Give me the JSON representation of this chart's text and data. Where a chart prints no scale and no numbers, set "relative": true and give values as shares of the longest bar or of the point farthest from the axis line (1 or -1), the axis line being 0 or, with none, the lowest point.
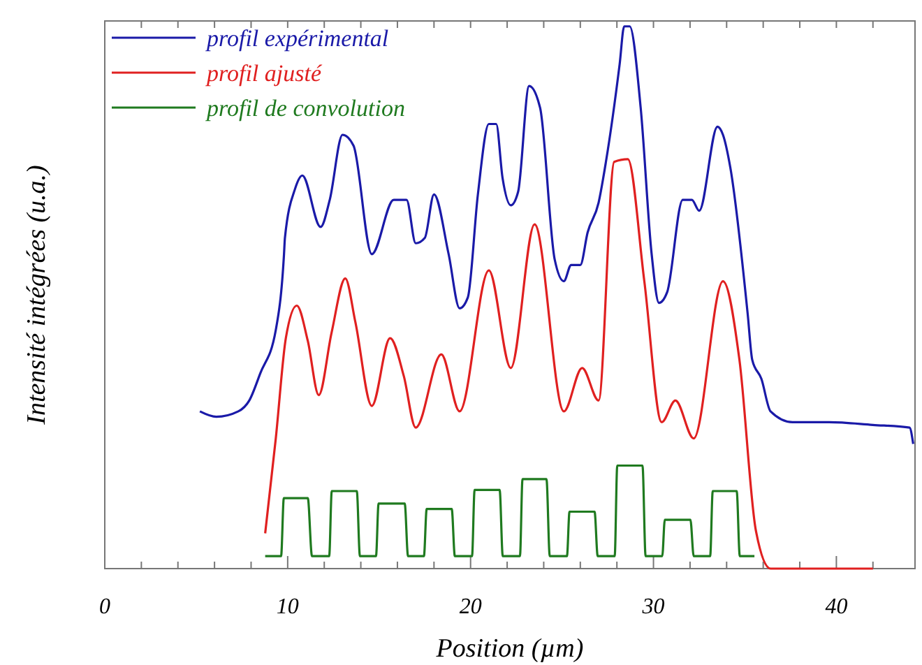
{
  "chart_data": {
    "type": "line",
    "relative": true,
    "xlabel": "Position (µm)",
    "ylabel": "Intensité intégrées (u.a.)",
    "xlim": [
      0,
      44.3
    ],
    "xticks": [
      0,
      {
        "value": 2,
        "label": null
      },
      {
        "value": 4,
        "label": null
      },
      {
        "value": 6,
        "label": null
      },
      {
        "value": 8,
        "label": null
      },
      10,
      {
        "value": 12,
        "label": null
      },
      {
        "value": 14,
        "label": null
      },
      {
        "value": 16,
        "label": null
      },
      {
        "value": 18,
        "label": null
      },
      20,
      {
        "value": 22,
        "label": null
      },
      {
        "value": 24,
        "label": null
      },
      {
        "value": 26,
        "label": null
      },
      {
        "value": 28,
        "label": null
      },
      30,
      {
        "value": 32,
        "label": null
      },
      {
        "value": 34,
        "label": null
      },
      {
        "value": 36,
        "label": null
      },
      {
        "value": 38,
        "label": null
      },
      40,
      {
        "value": 42,
        "label": null
      }
    ],
    "legend": "top left",
    "grid": false,
    "series": [
      {
        "name": "profil expérimental",
        "color": "#1a1aa8",
        "x": [
          5.2,
          6.1,
          7.3,
          7.9,
          8.5,
          9.35,
          9.8,
          9.85,
          10.4,
          10.8,
          11.8,
          12.3,
          13.0,
          13.6,
          14.6,
          15.8,
          16.5,
          17.0,
          17.5,
          18.0,
          18.8,
          19.4,
          19.85,
          20.4,
          21.0,
          21.4,
          21.75,
          22.2,
          22.6,
          23.2,
          23.8,
          24.6,
          25.1,
          25.5,
          26.0,
          26.4,
          27.0,
          27.4,
          28.15,
          28.4,
          28.7,
          29.3,
          29.9,
          30.3,
          30.75,
          31.6,
          32.1,
          32.5,
          33.5,
          33.8,
          34.2,
          35.15,
          35.4,
          35.9,
          36.4,
          37.6,
          39.6,
          42.0,
          44.0,
          44.2
        ],
        "values": [
          0.29,
          0.28,
          0.29,
          0.31,
          0.36,
          0.44,
          0.58,
          0.61,
          0.7,
          0.725,
          0.63,
          0.68,
          0.8,
          0.78,
          0.58,
          0.68,
          0.68,
          0.6,
          0.61,
          0.69,
          0.58,
          0.48,
          0.5,
          0.69,
          0.82,
          0.82,
          0.72,
          0.67,
          0.695,
          0.89,
          0.85,
          0.57,
          0.53,
          0.56,
          0.56,
          0.62,
          0.675,
          0.75,
          0.93,
          1.0,
          1.0,
          0.85,
          0.58,
          0.49,
          0.51,
          0.68,
          0.68,
          0.66,
          0.815,
          0.8,
          0.74,
          0.47,
          0.385,
          0.35,
          0.29,
          0.27,
          0.27,
          0.265,
          0.26,
          0.23
        ]
      },
      {
        "name": "profil ajusté",
        "color": "#e02020",
        "x": [
          8.77,
          9.35,
          9.9,
          10.5,
          11.1,
          11.7,
          12.4,
          13.15,
          13.7,
          14.6,
          15.6,
          16.35,
          17.0,
          18.4,
          19.4,
          21.0,
          22.2,
          23.5,
          25.1,
          26.1,
          27.0,
          27.85,
          28.6,
          29.5,
          30.45,
          31.2,
          32.2,
          33.8,
          34.7,
          35.6,
          36.4,
          42.0
        ],
        "values": [
          0.065,
          0.24,
          0.425,
          0.485,
          0.42,
          0.32,
          0.435,
          0.535,
          0.455,
          0.3,
          0.425,
          0.355,
          0.26,
          0.395,
          0.29,
          0.55,
          0.37,
          0.635,
          0.29,
          0.37,
          0.31,
          0.75,
          0.755,
          0.53,
          0.27,
          0.31,
          0.24,
          0.53,
          0.385,
          0.07,
          0,
          0
        ]
      },
      {
        "name": "profil de convolution",
        "color": "#1f7a1f",
        "x": [
          8.77,
          9.64,
          9.79,
          11.1,
          11.33,
          12.27,
          12.41,
          13.78,
          13.95,
          14.83,
          14.97,
          16.4,
          16.58,
          17.45,
          17.6,
          18.97,
          19.14,
          20.08,
          20.22,
          21.59,
          21.76,
          22.7,
          22.84,
          24.15,
          24.33,
          25.27,
          25.41,
          26.78,
          26.95,
          27.88,
          28.02,
          29.4,
          29.57,
          30.48,
          30.62,
          32.02,
          32.2,
          33.1,
          33.24,
          34.55,
          34.72,
          35.52
        ],
        "values": [
          0.023,
          0.023,
          0.13,
          0.13,
          0.023,
          0.023,
          0.143,
          0.143,
          0.023,
          0.023,
          0.12,
          0.12,
          0.023,
          0.023,
          0.11,
          0.11,
          0.023,
          0.023,
          0.145,
          0.145,
          0.023,
          0.023,
          0.165,
          0.165,
          0.023,
          0.023,
          0.105,
          0.105,
          0.023,
          0.023,
          0.19,
          0.19,
          0.023,
          0.023,
          0.09,
          0.09,
          0.023,
          0.023,
          0.143,
          0.143,
          0.023,
          0.023
        ]
      }
    ]
  }
}
